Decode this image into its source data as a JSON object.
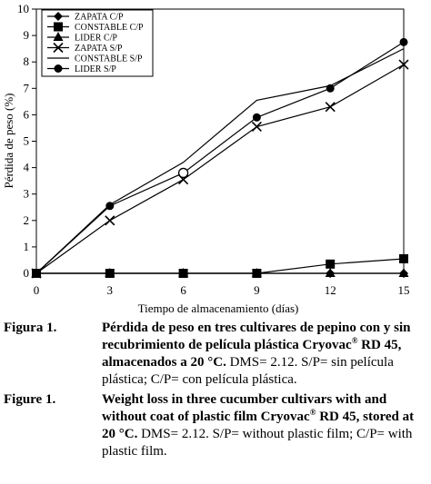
{
  "chart_data": {
    "type": "line",
    "title": "",
    "xlabel": "Tiempo de almacenamiento (días)",
    "ylabel": "Pérdida de peso (%)",
    "x": [
      0,
      3,
      6,
      9,
      12,
      15
    ],
    "xlim": [
      0,
      15
    ],
    "ylim": [
      0,
      10
    ],
    "xticks": [
      "0",
      "3",
      "6",
      "9",
      "12",
      "15"
    ],
    "yticks": [
      "0",
      "1",
      "2",
      "3",
      "4",
      "5",
      "6",
      "7",
      "8",
      "9",
      "10"
    ],
    "grid": false,
    "legend_position": "top-left",
    "series": [
      {
        "name": "ZAPATA C/P",
        "marker": "diamond",
        "values": [
          0,
          0,
          0,
          0,
          0,
          0
        ]
      },
      {
        "name": "CONSTABLE C/P",
        "marker": "square",
        "values": [
          0,
          0,
          0,
          0,
          0.35,
          0.55
        ]
      },
      {
        "name": "LIDER C/P",
        "marker": "triangle",
        "values": [
          0,
          0,
          0,
          0,
          0,
          0
        ]
      },
      {
        "name": "ZAPATA S/P",
        "marker": "x",
        "values": [
          0,
          2.0,
          3.55,
          5.55,
          6.3,
          7.9
        ]
      },
      {
        "name": "CONSTABLE S/P",
        "marker": "none",
        "values": [
          0,
          2.6,
          4.2,
          6.55,
          7.1,
          8.5
        ]
      },
      {
        "name": "LIDER S/P",
        "marker": "circle",
        "values": [
          0,
          2.55,
          3.8,
          5.9,
          7.0,
          8.75
        ]
      }
    ]
  },
  "captions": {
    "spanish": {
      "label": "Figura 1.",
      "bold_before": "Pérdida de peso en tres cultivares de pepino con y sin recubrimiento de película plástica Cryovac",
      "sup": "®",
      "bold_after": " RD 45, almacenados a 20 °C.",
      "plain": " DMS= 2.12. S/P= sin película plástica; C/P= con película plástica."
    },
    "english": {
      "label": "Figure 1.",
      "bold_before": "Weight loss in three cucumber cultivars with and without coat of plastic film Cryovac",
      "sup": "®",
      "bold_after": " RD 45, stored at 20 °C.",
      "plain": " DMS= 2.12. S/P= without plastic film; C/P= with plastic film."
    }
  }
}
